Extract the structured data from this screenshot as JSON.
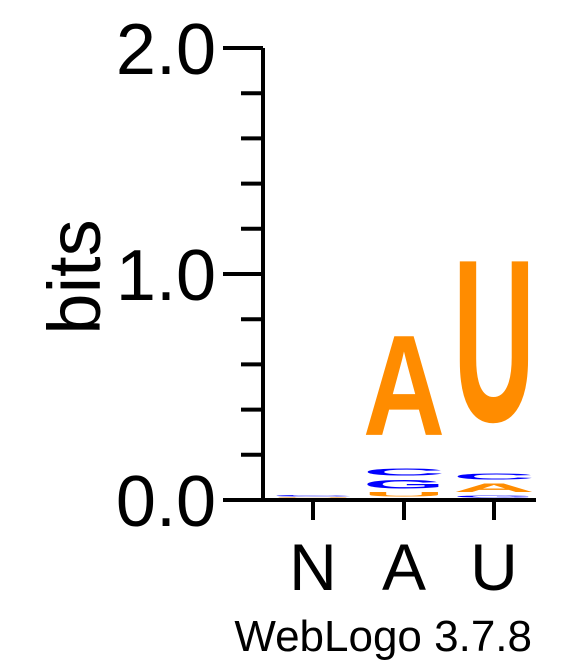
{
  "chart_data": {
    "type": "sequence-logo",
    "ylabel": "bits",
    "ylim": [
      0,
      2.0
    ],
    "y_ticks": [
      "0.0",
      "1.0",
      "2.0"
    ],
    "y_tick_values": [
      0.0,
      1.0,
      2.0
    ],
    "positions": [
      "N",
      "A",
      "U"
    ],
    "footer": "WebLogo 3.7.8",
    "colors": {
      "A": "#ff8c00",
      "U": "#ff8c00",
      "C": "#0000ff",
      "G": "#0000ff",
      "axis": "#000000"
    },
    "stacks": [
      [
        {
          "letter": "U",
          "bits": 0.006
        },
        {
          "letter": "C",
          "bits": 0.008
        }
      ],
      [
        {
          "letter": "U",
          "bits": 0.03
        },
        {
          "letter": "G",
          "bits": 0.06
        },
        {
          "letter": "C",
          "bits": 0.05
        },
        {
          "letter": "A",
          "bits": 0.71
        }
      ],
      [
        {
          "letter": "G",
          "bits": 0.015
        },
        {
          "letter": "A",
          "bits": 0.06
        },
        {
          "letter": "C",
          "bits": 0.04
        },
        {
          "letter": "U",
          "bits": 1.15
        }
      ]
    ]
  }
}
